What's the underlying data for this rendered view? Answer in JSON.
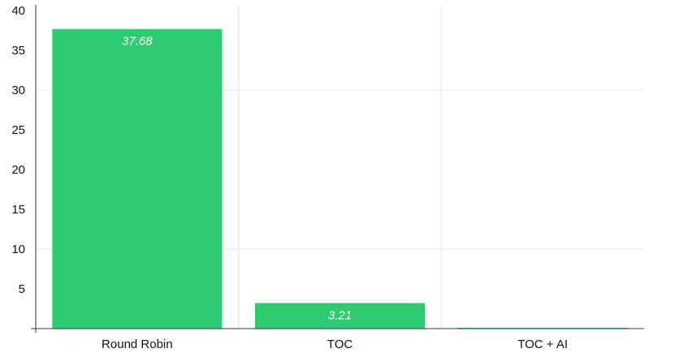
{
  "chart_data": {
    "type": "bar",
    "categories": [
      "Round Robin",
      "TOC",
      "TOC + AI"
    ],
    "values": [
      37.68,
      3.21,
      0.1
    ],
    "value_labels": [
      "37.68",
      "3.21",
      ""
    ],
    "ylim": [
      0,
      40
    ],
    "yticks": [
      "5",
      "10",
      "15",
      "20",
      "25",
      "30",
      "35",
      "40"
    ],
    "title": "",
    "xlabel": "",
    "ylabel": "",
    "grid": true,
    "bar_color": "#2ecc71",
    "grid_color": "#e5e5e5"
  }
}
